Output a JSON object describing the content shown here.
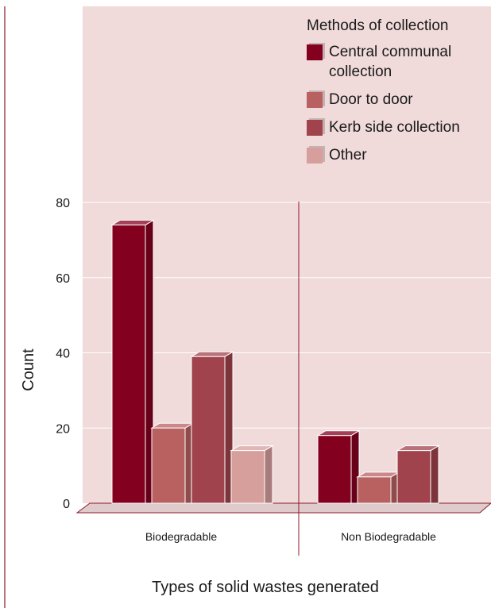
{
  "colors": {
    "plot_background": "#f0dada",
    "frame_line": "#8b1a2b",
    "gridline": "#ffffff",
    "series": [
      "#84001f",
      "#b96060",
      "#a0434c",
      "#d69f9c"
    ]
  },
  "legend": {
    "title": "Methods of collection",
    "items": [
      {
        "label": "Central communal collection",
        "color": "#84001f"
      },
      {
        "label": "Door to door",
        "color": "#b96060"
      },
      {
        "label": "Kerb side collection",
        "color": "#a0434c"
      },
      {
        "label": "Other",
        "color": "#d69f9c"
      }
    ]
  },
  "chart_data": {
    "type": "bar",
    "title": "",
    "xlabel": "Types of solid wastes generated",
    "ylabel": "Count",
    "categories": [
      "Biodegradable",
      "Non Biodegradable"
    ],
    "series": [
      {
        "name": "Central communal collection",
        "values": [
          74,
          18
        ]
      },
      {
        "name": "Door to door",
        "values": [
          20,
          7
        ]
      },
      {
        "name": "Kerb side collection",
        "values": [
          39,
          14
        ]
      },
      {
        "name": "Other",
        "values": [
          14,
          0
        ]
      }
    ],
    "ylim": [
      0,
      80
    ],
    "yticks": [
      0,
      20,
      40,
      60,
      80
    ],
    "grid": true,
    "legend_position": "top-right",
    "style": "3d-bars"
  }
}
